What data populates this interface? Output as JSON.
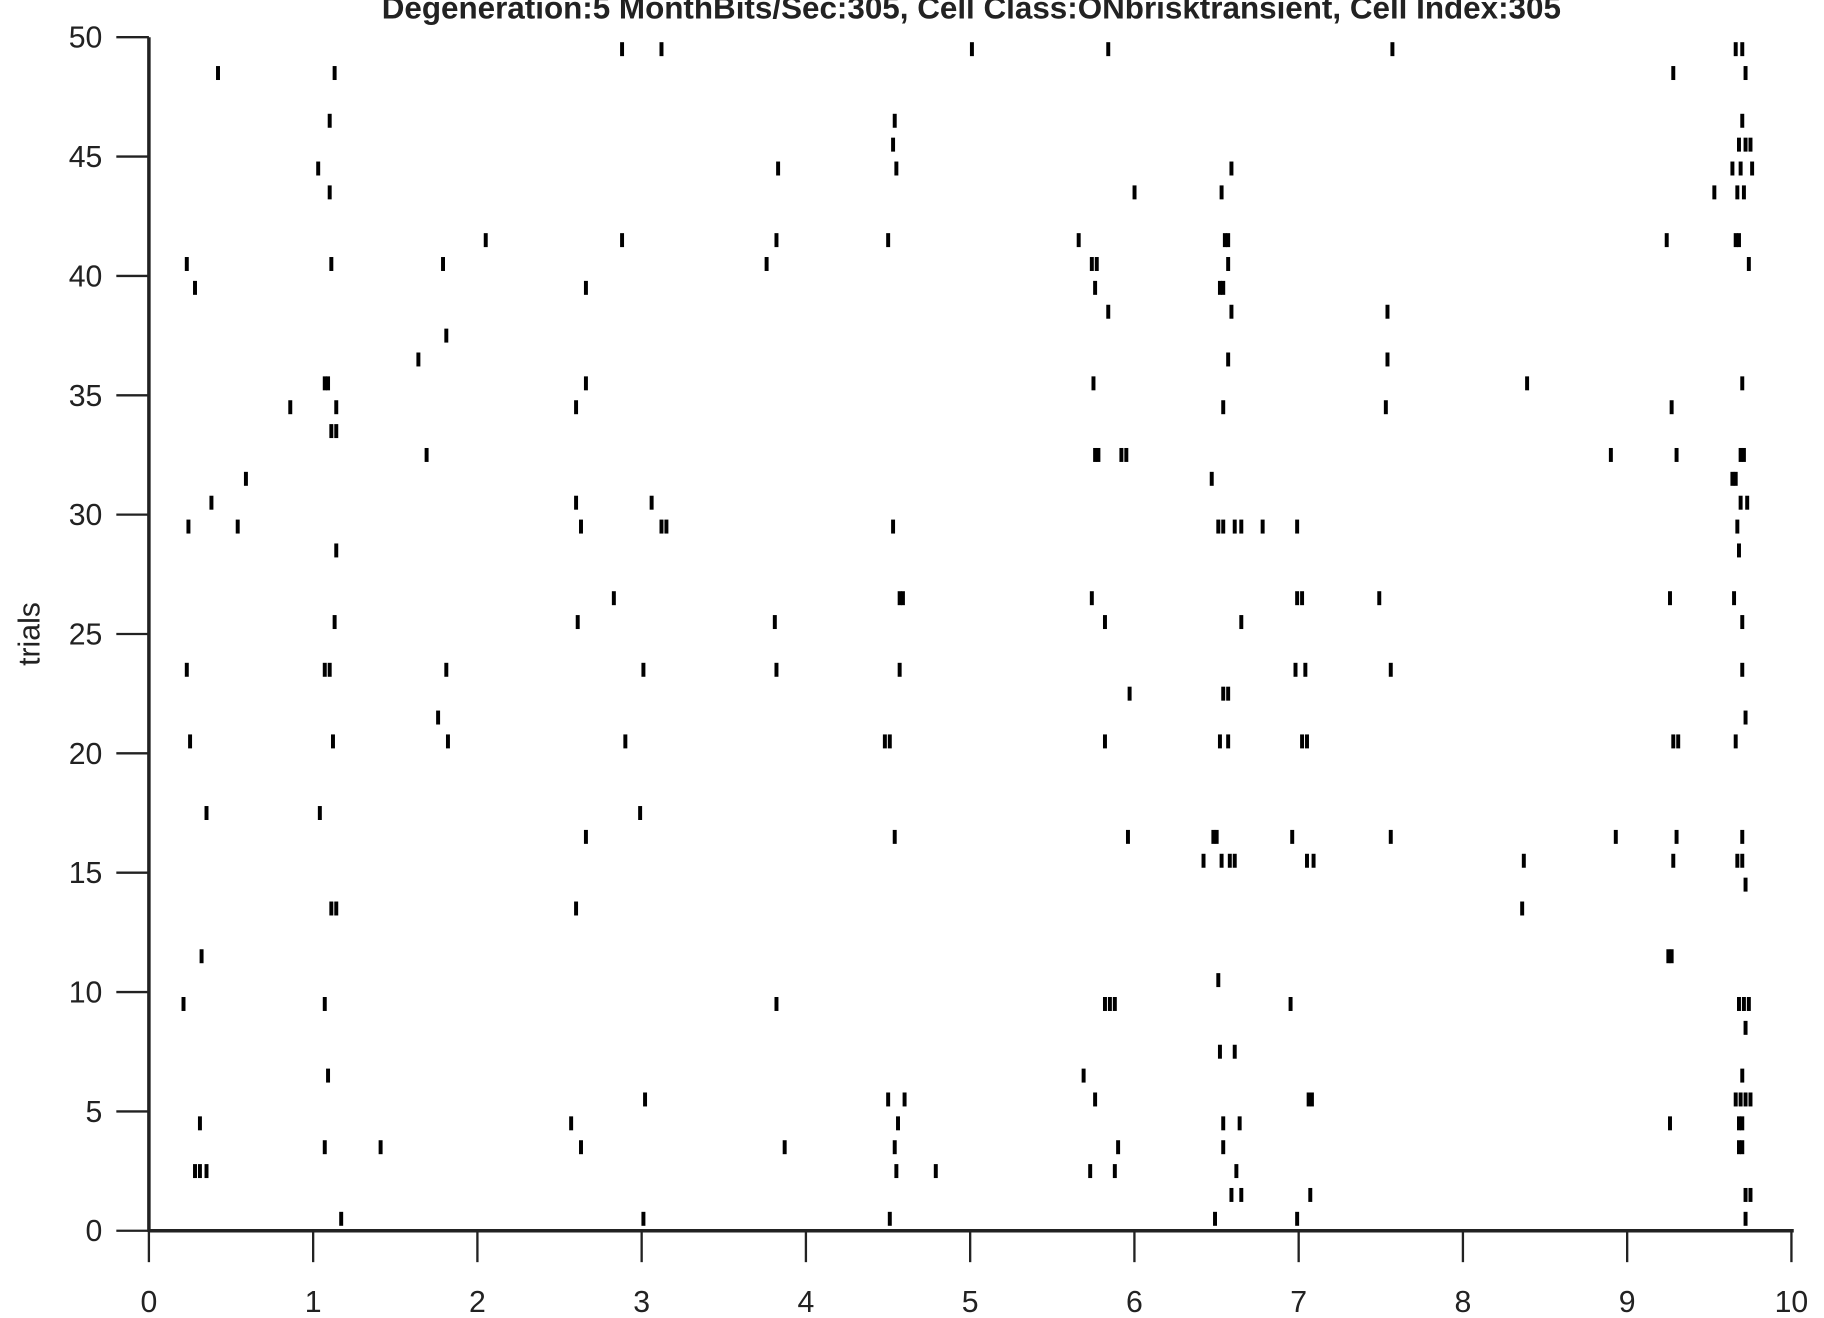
{
  "chart_data": {
    "type": "scatter",
    "subtype": "raster",
    "title": "Degeneration:5 MonthBits/Sec:305, Cell Class:ONbrisktransient, Cell Index:305",
    "xlabel": "",
    "ylabel": "trials",
    "xlim": [
      0,
      10
    ],
    "ylim": [
      0,
      50
    ],
    "xticks": [
      "0",
      "1",
      "2",
      "3",
      "4",
      "5",
      "6",
      "7",
      "8",
      "9",
      "10"
    ],
    "yticks": [
      "0",
      "5",
      "10",
      "15",
      "20",
      "25",
      "30",
      "35",
      "40",
      "45",
      "50"
    ],
    "grid": false,
    "marker_color": "#000000",
    "trials": [
      {
        "trial": 1,
        "spikes": [
          1.17,
          3.01,
          4.51,
          6.49,
          6.99,
          9.72
        ]
      },
      {
        "trial": 2,
        "spikes": [
          6.59,
          6.65,
          7.07,
          9.72,
          9.75
        ]
      },
      {
        "trial": 3,
        "spikes": [
          0.28,
          0.31,
          0.35,
          4.55,
          4.79,
          5.73,
          5.88,
          6.62
        ]
      },
      {
        "trial": 4,
        "spikes": [
          1.07,
          1.41,
          2.63,
          3.87,
          4.54,
          5.9,
          6.54,
          9.68,
          9.7
        ]
      },
      {
        "trial": 5,
        "spikes": [
          0.31,
          2.57,
          4.56,
          6.54,
          6.64,
          9.26,
          9.68,
          9.7
        ]
      },
      {
        "trial": 6,
        "spikes": [
          3.02,
          4.5,
          4.6,
          5.76,
          7.06,
          7.08,
          9.66,
          9.69,
          9.72,
          9.75
        ]
      },
      {
        "trial": 7,
        "spikes": [
          1.09,
          5.69,
          9.7
        ]
      },
      {
        "trial": 8,
        "spikes": [
          6.52,
          6.61
        ]
      },
      {
        "trial": 9,
        "spikes": [
          9.72
        ]
      },
      {
        "trial": 10,
        "spikes": [
          0.21,
          1.07,
          3.82,
          5.82,
          5.85,
          5.88,
          6.95,
          9.68,
          9.71,
          9.74
        ]
      },
      {
        "trial": 11,
        "spikes": [
          6.51
        ]
      },
      {
        "trial": 12,
        "spikes": [
          0.32,
          9.25,
          9.27
        ]
      },
      {
        "trial": 13,
        "spikes": []
      },
      {
        "trial": 14,
        "spikes": [
          1.11,
          1.14,
          2.6,
          8.36
        ]
      },
      {
        "trial": 15,
        "spikes": [
          9.72
        ]
      },
      {
        "trial": 16,
        "spikes": [
          6.42,
          6.53,
          6.58,
          6.61,
          7.05,
          7.09,
          8.37,
          9.28,
          9.67,
          9.7
        ]
      },
      {
        "trial": 17,
        "spikes": [
          2.66,
          4.54,
          5.96,
          6.48,
          6.5,
          6.96,
          7.56,
          8.93,
          9.3,
          9.7
        ]
      },
      {
        "trial": 18,
        "spikes": [
          0.35,
          1.04,
          2.99
        ]
      },
      {
        "trial": 19,
        "spikes": []
      },
      {
        "trial": 20,
        "spikes": []
      },
      {
        "trial": 21,
        "spikes": [
          0.25,
          1.12,
          1.82,
          2.9,
          4.48,
          4.51,
          5.82,
          6.52,
          6.57,
          7.02,
          7.05,
          9.28,
          9.31,
          9.66
        ]
      },
      {
        "trial": 22,
        "spikes": [
          1.76,
          9.72
        ]
      },
      {
        "trial": 23,
        "spikes": [
          5.97,
          6.54,
          6.57
        ]
      },
      {
        "trial": 24,
        "spikes": [
          0.23,
          1.07,
          1.1,
          1.81,
          3.01,
          3.82,
          4.57,
          6.98,
          7.04,
          7.56,
          9.7
        ]
      },
      {
        "trial": 25,
        "spikes": []
      },
      {
        "trial": 26,
        "spikes": [
          1.13,
          2.61,
          3.81,
          5.82,
          6.65,
          9.7
        ]
      },
      {
        "trial": 27,
        "spikes": [
          2.83,
          4.57,
          4.59,
          5.74,
          6.99,
          7.02,
          7.49,
          9.26,
          9.65
        ]
      },
      {
        "trial": 28,
        "spikes": []
      },
      {
        "trial": 29,
        "spikes": [
          1.14,
          9.68
        ]
      },
      {
        "trial": 30,
        "spikes": [
          0.24,
          0.54,
          2.63,
          3.12,
          3.15,
          4.53,
          6.51,
          6.54,
          6.61,
          6.65,
          6.78,
          6.99,
          9.67
        ]
      },
      {
        "trial": 31,
        "spikes": [
          0.38,
          2.6,
          3.06,
          9.69,
          9.73
        ]
      },
      {
        "trial": 32,
        "spikes": [
          0.59,
          6.47,
          9.64,
          9.66
        ]
      },
      {
        "trial": 33,
        "spikes": [
          1.69,
          5.76,
          5.78,
          5.92,
          5.95,
          8.9,
          9.3,
          9.69,
          9.71
        ]
      },
      {
        "trial": 34,
        "spikes": [
          1.11,
          1.14
        ]
      },
      {
        "trial": 35,
        "spikes": [
          0.86,
          1.14,
          2.6,
          6.54,
          7.53,
          9.27
        ]
      },
      {
        "trial": 36,
        "spikes": [
          1.07,
          1.09,
          2.66,
          5.75,
          8.39,
          9.7
        ]
      },
      {
        "trial": 37,
        "spikes": [
          1.64,
          6.57,
          7.54
        ]
      },
      {
        "trial": 38,
        "spikes": [
          1.81
        ]
      },
      {
        "trial": 39,
        "spikes": [
          5.84,
          6.59,
          7.54
        ]
      },
      {
        "trial": 40,
        "spikes": [
          0.28,
          2.66,
          5.76,
          6.52,
          6.54
        ]
      },
      {
        "trial": 41,
        "spikes": [
          0.23,
          1.11,
          1.79,
          3.76,
          5.74,
          5.77,
          6.57,
          9.74
        ]
      },
      {
        "trial": 42,
        "spikes": [
          2.05,
          2.88,
          3.82,
          4.5,
          5.66,
          6.55,
          6.57,
          9.24,
          9.66,
          9.68
        ]
      },
      {
        "trial": 43,
        "spikes": []
      },
      {
        "trial": 44,
        "spikes": [
          1.1,
          6.0,
          6.53,
          9.53,
          9.67,
          9.71
        ]
      },
      {
        "trial": 45,
        "spikes": [
          1.03,
          3.83,
          4.55,
          6.59,
          9.64,
          9.69,
          9.76
        ]
      },
      {
        "trial": 46,
        "spikes": [
          4.53,
          9.68,
          9.72,
          9.75
        ]
      },
      {
        "trial": 47,
        "spikes": [
          1.1,
          4.54,
          9.7
        ]
      },
      {
        "trial": 48,
        "spikes": []
      },
      {
        "trial": 49,
        "spikes": [
          0.42,
          1.13,
          9.28,
          9.72
        ]
      },
      {
        "trial": 50,
        "spikes": [
          2.88,
          3.12,
          5.01,
          5.84,
          7.57,
          9.66,
          9.7
        ]
      }
    ]
  }
}
